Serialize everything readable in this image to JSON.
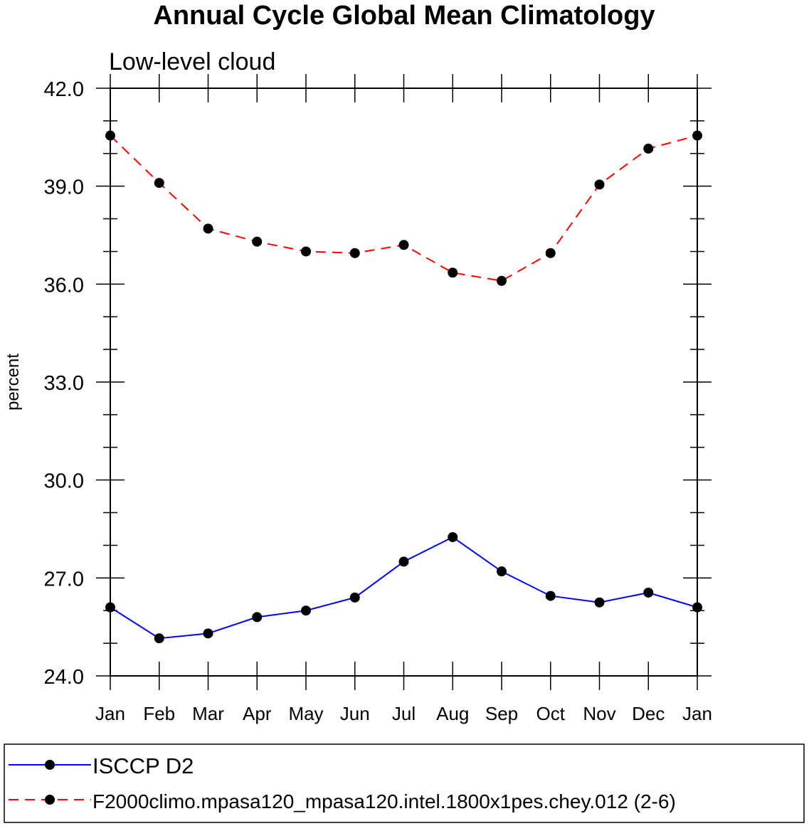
{
  "chart_data": {
    "type": "line",
    "title": "Annual Cycle Global Mean Climatology",
    "subtitle": "Low-level cloud",
    "xlabel": "",
    "ylabel": "percent",
    "categories": [
      "Jan",
      "Feb",
      "Mar",
      "Apr",
      "May",
      "Jun",
      "Jul",
      "Aug",
      "Sep",
      "Oct",
      "Nov",
      "Dec",
      "Jan"
    ],
    "ylim": [
      24.0,
      42.0
    ],
    "yticks": [
      "24.0",
      "27.0",
      "30.0",
      "33.0",
      "36.0",
      "39.0",
      "42.0"
    ],
    "grid": false,
    "legend_position": "bottom",
    "series": [
      {
        "name": "ISCCP D2",
        "color": "#0000ff",
        "line_style": "solid",
        "marker": "filled-circle",
        "values": [
          26.1,
          25.15,
          25.3,
          25.8,
          26.0,
          26.4,
          27.5,
          28.25,
          27.2,
          26.45,
          26.25,
          26.55,
          26.1
        ]
      },
      {
        "name": "F2000climo.mpasa120_mpasa120.intel.1800x1pes.chey.012 (2-6)",
        "color": "#ff0000",
        "line_style": "dashed",
        "marker": "filled-circle",
        "values": [
          40.55,
          39.1,
          37.7,
          37.3,
          37.0,
          36.95,
          37.2,
          36.35,
          36.1,
          36.95,
          39.05,
          40.15,
          40.55
        ]
      }
    ]
  }
}
